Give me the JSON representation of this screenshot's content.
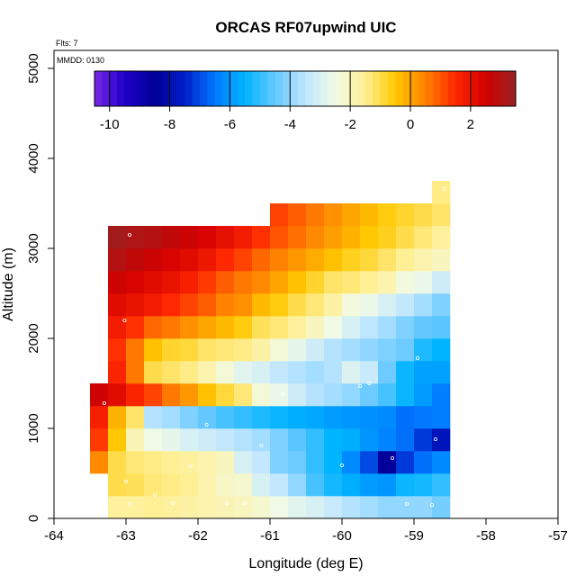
{
  "chart_data": {
    "type": "heatmap",
    "title": "ORCAS RF07upwind UIC",
    "notes": [
      "Flts: 7",
      "MMDD: 0130"
    ],
    "xlabel": "Longitude (deg E)",
    "ylabel": "Altitude (m)",
    "xlim": [
      -64,
      -57
    ],
    "ylim": [
      0,
      5200
    ],
    "xticks": [
      -64,
      -63,
      -62,
      -61,
      -60,
      -59,
      -58,
      -57
    ],
    "yticks": [
      0,
      1000,
      2000,
      3000,
      4000,
      5000
    ],
    "colorbar": {
      "range": [
        -10.5,
        3.5
      ],
      "ticks": [
        -10,
        -8,
        -6,
        -4,
        -2,
        0,
        2
      ],
      "position": "top-inset"
    },
    "grid": false,
    "cell_size": {
      "lon": 0.25,
      "alt": 250
    },
    "cells": [
      [
        -63.125,
        125,
        -1.6
      ],
      [
        -62.875,
        125,
        -1.6
      ],
      [
        -62.625,
        125,
        -1.5
      ],
      [
        -62.375,
        125,
        -1.6
      ],
      [
        -62.125,
        125,
        -1.7
      ],
      [
        -61.875,
        125,
        -1.8
      ],
      [
        -61.625,
        125,
        -1.9
      ],
      [
        -61.375,
        125,
        -2.0
      ],
      [
        -61.125,
        125,
        -2.2
      ],
      [
        -60.875,
        125,
        -2.5
      ],
      [
        -60.625,
        125,
        -2.8
      ],
      [
        -60.375,
        125,
        -3.0
      ],
      [
        -60.125,
        125,
        -3.3
      ],
      [
        -59.875,
        125,
        -3.6
      ],
      [
        -59.625,
        125,
        -3.8
      ],
      [
        -59.375,
        125,
        -4.0
      ],
      [
        -59.125,
        125,
        -4.0
      ],
      [
        -58.875,
        125,
        -4.0
      ],
      [
        -58.625,
        125,
        -4.3
      ],
      [
        -63.125,
        375,
        -1.0
      ],
      [
        -62.875,
        375,
        -1.1
      ],
      [
        -62.625,
        375,
        -1.3
      ],
      [
        -62.375,
        375,
        -1.4
      ],
      [
        -62.125,
        375,
        -1.5
      ],
      [
        -61.875,
        375,
        -1.8
      ],
      [
        -61.625,
        375,
        -2.1
      ],
      [
        -61.375,
        375,
        -2.2
      ],
      [
        -61.125,
        375,
        -3.0
      ],
      [
        -60.875,
        375,
        -3.4
      ],
      [
        -60.625,
        375,
        -4.0
      ],
      [
        -60.375,
        375,
        -4.8
      ],
      [
        -60.125,
        375,
        -5.3
      ],
      [
        -59.875,
        375,
        -5.6
      ],
      [
        -59.625,
        375,
        -5.9
      ],
      [
        -59.375,
        375,
        -6.0
      ],
      [
        -59.125,
        375,
        -5.4
      ],
      [
        -58.875,
        375,
        -5.3
      ],
      [
        -58.625,
        375,
        -5.0
      ],
      [
        -63.375,
        625,
        0.4
      ],
      [
        -63.125,
        625,
        -1.0
      ],
      [
        -62.875,
        625,
        -1.3
      ],
      [
        -62.625,
        625,
        -1.4
      ],
      [
        -62.375,
        625,
        -1.5
      ],
      [
        -62.125,
        625,
        -1.6
      ],
      [
        -61.875,
        625,
        -1.8
      ],
      [
        -61.625,
        625,
        -2.0
      ],
      [
        -61.375,
        625,
        -3.0
      ],
      [
        -61.125,
        625,
        -3.4
      ],
      [
        -60.875,
        625,
        -4.2
      ],
      [
        -60.625,
        625,
        -4.4
      ],
      [
        -60.375,
        625,
        -5.0
      ],
      [
        -60.125,
        625,
        -5.5
      ],
      [
        -59.875,
        625,
        -6.2
      ],
      [
        -59.625,
        625,
        -7.0
      ],
      [
        -59.375,
        625,
        -8.6
      ],
      [
        -59.125,
        625,
        -7.2
      ],
      [
        -58.875,
        625,
        -6.6
      ],
      [
        -58.625,
        625,
        -6.2
      ],
      [
        -63.375,
        875,
        1.3
      ],
      [
        -63.125,
        875,
        -0.5
      ],
      [
        -62.875,
        875,
        -1.9
      ],
      [
        -62.625,
        875,
        -2.5
      ],
      [
        -62.375,
        875,
        -2.7
      ],
      [
        -62.125,
        875,
        -3.0
      ],
      [
        -61.875,
        875,
        -3.2
      ],
      [
        -61.625,
        875,
        -3.4
      ],
      [
        -61.375,
        875,
        -3.6
      ],
      [
        -61.125,
        875,
        -3.8
      ],
      [
        -60.875,
        875,
        -4.2
      ],
      [
        -60.625,
        875,
        -4.6
      ],
      [
        -60.375,
        875,
        -5.0
      ],
      [
        -60.125,
        875,
        -5.5
      ],
      [
        -59.875,
        875,
        -5.6
      ],
      [
        -59.625,
        875,
        -6.0
      ],
      [
        -59.375,
        875,
        -6.3
      ],
      [
        -59.125,
        875,
        -6.6
      ],
      [
        -58.875,
        875,
        -7.2
      ],
      [
        -58.625,
        875,
        -7.8
      ],
      [
        -63.375,
        1125,
        1.7
      ],
      [
        -63.125,
        1125,
        -0.2
      ],
      [
        -62.875,
        1125,
        -1.2
      ],
      [
        -62.625,
        1125,
        -3.6
      ],
      [
        -62.375,
        1125,
        -3.8
      ],
      [
        -62.125,
        1125,
        -4.2
      ],
      [
        -61.875,
        1125,
        -4.5
      ],
      [
        -61.625,
        1125,
        -4.8
      ],
      [
        -61.375,
        1125,
        -5.0
      ],
      [
        -61.125,
        1125,
        -5.2
      ],
      [
        -60.875,
        1125,
        -5.4
      ],
      [
        -60.625,
        1125,
        -5.6
      ],
      [
        -60.375,
        1125,
        -5.7
      ],
      [
        -60.125,
        1125,
        -5.9
      ],
      [
        -59.875,
        1125,
        -6.0
      ],
      [
        -59.625,
        1125,
        -6.1
      ],
      [
        -59.375,
        1125,
        -6.2
      ],
      [
        -59.125,
        1125,
        -6.6
      ],
      [
        -58.875,
        1125,
        -6.5
      ],
      [
        -58.625,
        1125,
        -6.4
      ],
      [
        -63.375,
        1375,
        2.6
      ],
      [
        -63.125,
        1375,
        2.2
      ],
      [
        -62.875,
        1375,
        1.6
      ],
      [
        -62.625,
        1375,
        1.2
      ],
      [
        -62.375,
        1375,
        0.6
      ],
      [
        -62.125,
        1375,
        0.2
      ],
      [
        -61.875,
        1375,
        -0.4
      ],
      [
        -61.625,
        1375,
        -0.9
      ],
      [
        -61.375,
        1375,
        -1.3
      ],
      [
        -61.125,
        1375,
        -2.3
      ],
      [
        -60.875,
        1375,
        -2.6
      ],
      [
        -60.625,
        1375,
        -3.2
      ],
      [
        -60.375,
        1375,
        -3.6
      ],
      [
        -60.125,
        1375,
        -3.8
      ],
      [
        -59.875,
        1375,
        -4.0
      ],
      [
        -59.625,
        1375,
        -4.4
      ],
      [
        -59.375,
        1375,
        -4.8
      ],
      [
        -59.125,
        1375,
        -5.4
      ],
      [
        -58.875,
        1375,
        -5.9
      ],
      [
        -58.625,
        1375,
        -6.4
      ],
      [
        -63.125,
        1625,
        1.6
      ],
      [
        -62.875,
        1625,
        0.6
      ],
      [
        -62.625,
        1625,
        -1.0
      ],
      [
        -62.375,
        1625,
        -1.2
      ],
      [
        -62.125,
        1625,
        -1.4
      ],
      [
        -61.875,
        1625,
        -1.8
      ],
      [
        -61.625,
        1625,
        -2.3
      ],
      [
        -61.375,
        1625,
        -2.8
      ],
      [
        -61.125,
        1625,
        -3.0
      ],
      [
        -60.875,
        1625,
        -3.4
      ],
      [
        -60.625,
        1625,
        -3.6
      ],
      [
        -60.375,
        1625,
        -3.8
      ],
      [
        -60.125,
        1625,
        -3.6
      ],
      [
        -59.875,
        1625,
        -2.9
      ],
      [
        -59.625,
        1625,
        -3.3
      ],
      [
        -59.375,
        1625,
        -4.4
      ],
      [
        -59.125,
        1625,
        -5.4
      ],
      [
        -58.875,
        1625,
        -5.8
      ],
      [
        -58.625,
        1625,
        -5.8
      ],
      [
        -63.125,
        1875,
        1.4
      ],
      [
        -62.875,
        1875,
        0.6
      ],
      [
        -62.625,
        1875,
        -0.4
      ],
      [
        -62.375,
        1875,
        -0.8
      ],
      [
        -62.125,
        1875,
        -0.9
      ],
      [
        -61.875,
        1875,
        -1.2
      ],
      [
        -61.625,
        1875,
        -1.3
      ],
      [
        -61.375,
        1875,
        -1.4
      ],
      [
        -61.125,
        1875,
        -1.7
      ],
      [
        -60.875,
        1875,
        -2.3
      ],
      [
        -60.625,
        1875,
        -2.7
      ],
      [
        -60.375,
        1875,
        -3.2
      ],
      [
        -60.125,
        1875,
        -3.6
      ],
      [
        -59.875,
        1875,
        -3.8
      ],
      [
        -59.625,
        1875,
        -4.0
      ],
      [
        -59.375,
        1875,
        -4.2
      ],
      [
        -59.125,
        1875,
        -4.4
      ],
      [
        -58.875,
        1875,
        -5.2
      ],
      [
        -58.625,
        1875,
        -5.5
      ],
      [
        -63.125,
        2125,
        1.8
      ],
      [
        -62.875,
        2125,
        1.4
      ],
      [
        -62.625,
        2125,
        0.8
      ],
      [
        -62.375,
        2125,
        0.6
      ],
      [
        -62.125,
        2125,
        0.3
      ],
      [
        -61.875,
        2125,
        0.0
      ],
      [
        -61.625,
        2125,
        -0.3
      ],
      [
        -61.375,
        2125,
        -0.6
      ],
      [
        -61.125,
        2125,
        -1.1
      ],
      [
        -60.875,
        2125,
        -1.3
      ],
      [
        -60.625,
        2125,
        -1.6
      ],
      [
        -60.375,
        2125,
        -2.0
      ],
      [
        -60.125,
        2125,
        -2.5
      ],
      [
        -59.875,
        2125,
        -3.0
      ],
      [
        -59.625,
        2125,
        -3.5
      ],
      [
        -59.375,
        2125,
        -3.8
      ],
      [
        -59.125,
        2125,
        -4.2
      ],
      [
        -58.875,
        2125,
        -4.5
      ],
      [
        -58.625,
        2125,
        -4.6
      ],
      [
        -63.125,
        2375,
        2.2
      ],
      [
        -62.875,
        2375,
        2.0
      ],
      [
        -62.625,
        2375,
        1.8
      ],
      [
        -62.375,
        2375,
        1.5
      ],
      [
        -62.125,
        2375,
        1.2
      ],
      [
        -61.875,
        2375,
        0.9
      ],
      [
        -61.625,
        2375,
        0.5
      ],
      [
        -61.375,
        2375,
        0.3
      ],
      [
        -61.125,
        2375,
        -0.3
      ],
      [
        -60.875,
        2375,
        -0.6
      ],
      [
        -60.625,
        2375,
        -1.0
      ],
      [
        -60.375,
        2375,
        -1.3
      ],
      [
        -60.125,
        2375,
        -1.7
      ],
      [
        -59.875,
        2375,
        -2.4
      ],
      [
        -59.625,
        2375,
        -2.6
      ],
      [
        -59.375,
        2375,
        -3.0
      ],
      [
        -59.125,
        2375,
        -3.4
      ],
      [
        -58.875,
        2375,
        -3.8
      ],
      [
        -58.625,
        2375,
        -4.2
      ],
      [
        -63.125,
        2625,
        2.6
      ],
      [
        -62.875,
        2625,
        2.4
      ],
      [
        -62.625,
        2625,
        2.2
      ],
      [
        -62.375,
        2625,
        2.0
      ],
      [
        -62.125,
        2625,
        1.7
      ],
      [
        -61.875,
        2625,
        1.3
      ],
      [
        -61.625,
        2625,
        0.9
      ],
      [
        -61.375,
        2625,
        0.6
      ],
      [
        -61.125,
        2625,
        0.4
      ],
      [
        -60.875,
        2625,
        0.0
      ],
      [
        -60.625,
        2625,
        -0.4
      ],
      [
        -60.375,
        2625,
        -0.8
      ],
      [
        -60.125,
        2625,
        -1.2
      ],
      [
        -59.875,
        2625,
        -1.3
      ],
      [
        -59.625,
        2625,
        -1.5
      ],
      [
        -59.375,
        2625,
        -1.8
      ],
      [
        -59.125,
        2625,
        -2.4
      ],
      [
        -58.875,
        2625,
        -2.6
      ],
      [
        -58.625,
        2625,
        -3.2
      ],
      [
        -63.125,
        2875,
        3.0
      ],
      [
        -62.875,
        2875,
        2.8
      ],
      [
        -62.625,
        2875,
        2.6
      ],
      [
        -62.375,
        2875,
        2.4
      ],
      [
        -62.125,
        2875,
        2.2
      ],
      [
        -61.875,
        2875,
        1.9
      ],
      [
        -61.625,
        2875,
        1.5
      ],
      [
        -61.375,
        2875,
        1.2
      ],
      [
        -61.125,
        2875,
        0.8
      ],
      [
        -60.875,
        2875,
        0.5
      ],
      [
        -60.625,
        2875,
        0.2
      ],
      [
        -60.375,
        2875,
        -0.1
      ],
      [
        -60.125,
        2875,
        -0.4
      ],
      [
        -59.875,
        2875,
        -0.7
      ],
      [
        -59.625,
        2875,
        -0.9
      ],
      [
        -59.375,
        2875,
        -1.2
      ],
      [
        -59.125,
        2875,
        -1.5
      ],
      [
        -58.875,
        2875,
        -1.8
      ],
      [
        -58.625,
        2875,
        -2.0
      ],
      [
        -63.125,
        3125,
        3.3
      ],
      [
        -62.875,
        3125,
        3.1
      ],
      [
        -62.625,
        3125,
        3.0
      ],
      [
        -62.375,
        3125,
        2.8
      ],
      [
        -62.125,
        3125,
        2.6
      ],
      [
        -61.875,
        3125,
        2.4
      ],
      [
        -61.625,
        3125,
        2.1
      ],
      [
        -61.375,
        3125,
        1.8
      ],
      [
        -61.125,
        3125,
        1.4
      ],
      [
        -60.875,
        3125,
        1.0
      ],
      [
        -60.625,
        3125,
        0.7
      ],
      [
        -60.375,
        3125,
        0.4
      ],
      [
        -60.125,
        3125,
        0.1
      ],
      [
        -59.875,
        3125,
        -0.2
      ],
      [
        -59.625,
        3125,
        -0.5
      ],
      [
        -59.375,
        3125,
        -0.7
      ],
      [
        -59.125,
        3125,
        -1.0
      ],
      [
        -58.875,
        3125,
        -1.3
      ],
      [
        -58.625,
        3125,
        -1.6
      ],
      [
        -60.875,
        3375,
        1.2
      ],
      [
        -60.625,
        3375,
        0.9
      ],
      [
        -60.375,
        3375,
        0.6
      ],
      [
        -60.125,
        3375,
        0.3
      ],
      [
        -59.875,
        3375,
        0.0
      ],
      [
        -59.625,
        3375,
        -0.3
      ],
      [
        -59.375,
        3375,
        -0.6
      ],
      [
        -59.125,
        3375,
        -0.8
      ],
      [
        -58.875,
        3375,
        -1.0
      ],
      [
        -58.625,
        3375,
        -1.2
      ],
      [
        -58.625,
        3625,
        -1.4
      ]
    ],
    "flight_points": [
      [
        -63.3,
        1280
      ],
      [
        -63.02,
        2200
      ],
      [
        -62.95,
        3150
      ],
      [
        -63.0,
        410
      ],
      [
        -62.95,
        160
      ],
      [
        -62.6,
        260
      ],
      [
        -62.35,
        170
      ],
      [
        -62.1,
        580
      ],
      [
        -61.88,
        1040
      ],
      [
        -61.6,
        170
      ],
      [
        -61.35,
        170
      ],
      [
        -61.12,
        810
      ],
      [
        -60.82,
        1380
      ],
      [
        -60.0,
        590
      ],
      [
        -59.75,
        1470
      ],
      [
        -59.62,
        1500
      ],
      [
        -59.3,
        670
      ],
      [
        -58.95,
        1780
      ],
      [
        -58.7,
        880
      ],
      [
        -58.58,
        3660
      ],
      [
        -58.75,
        150
      ],
      [
        -59.1,
        160
      ]
    ]
  }
}
